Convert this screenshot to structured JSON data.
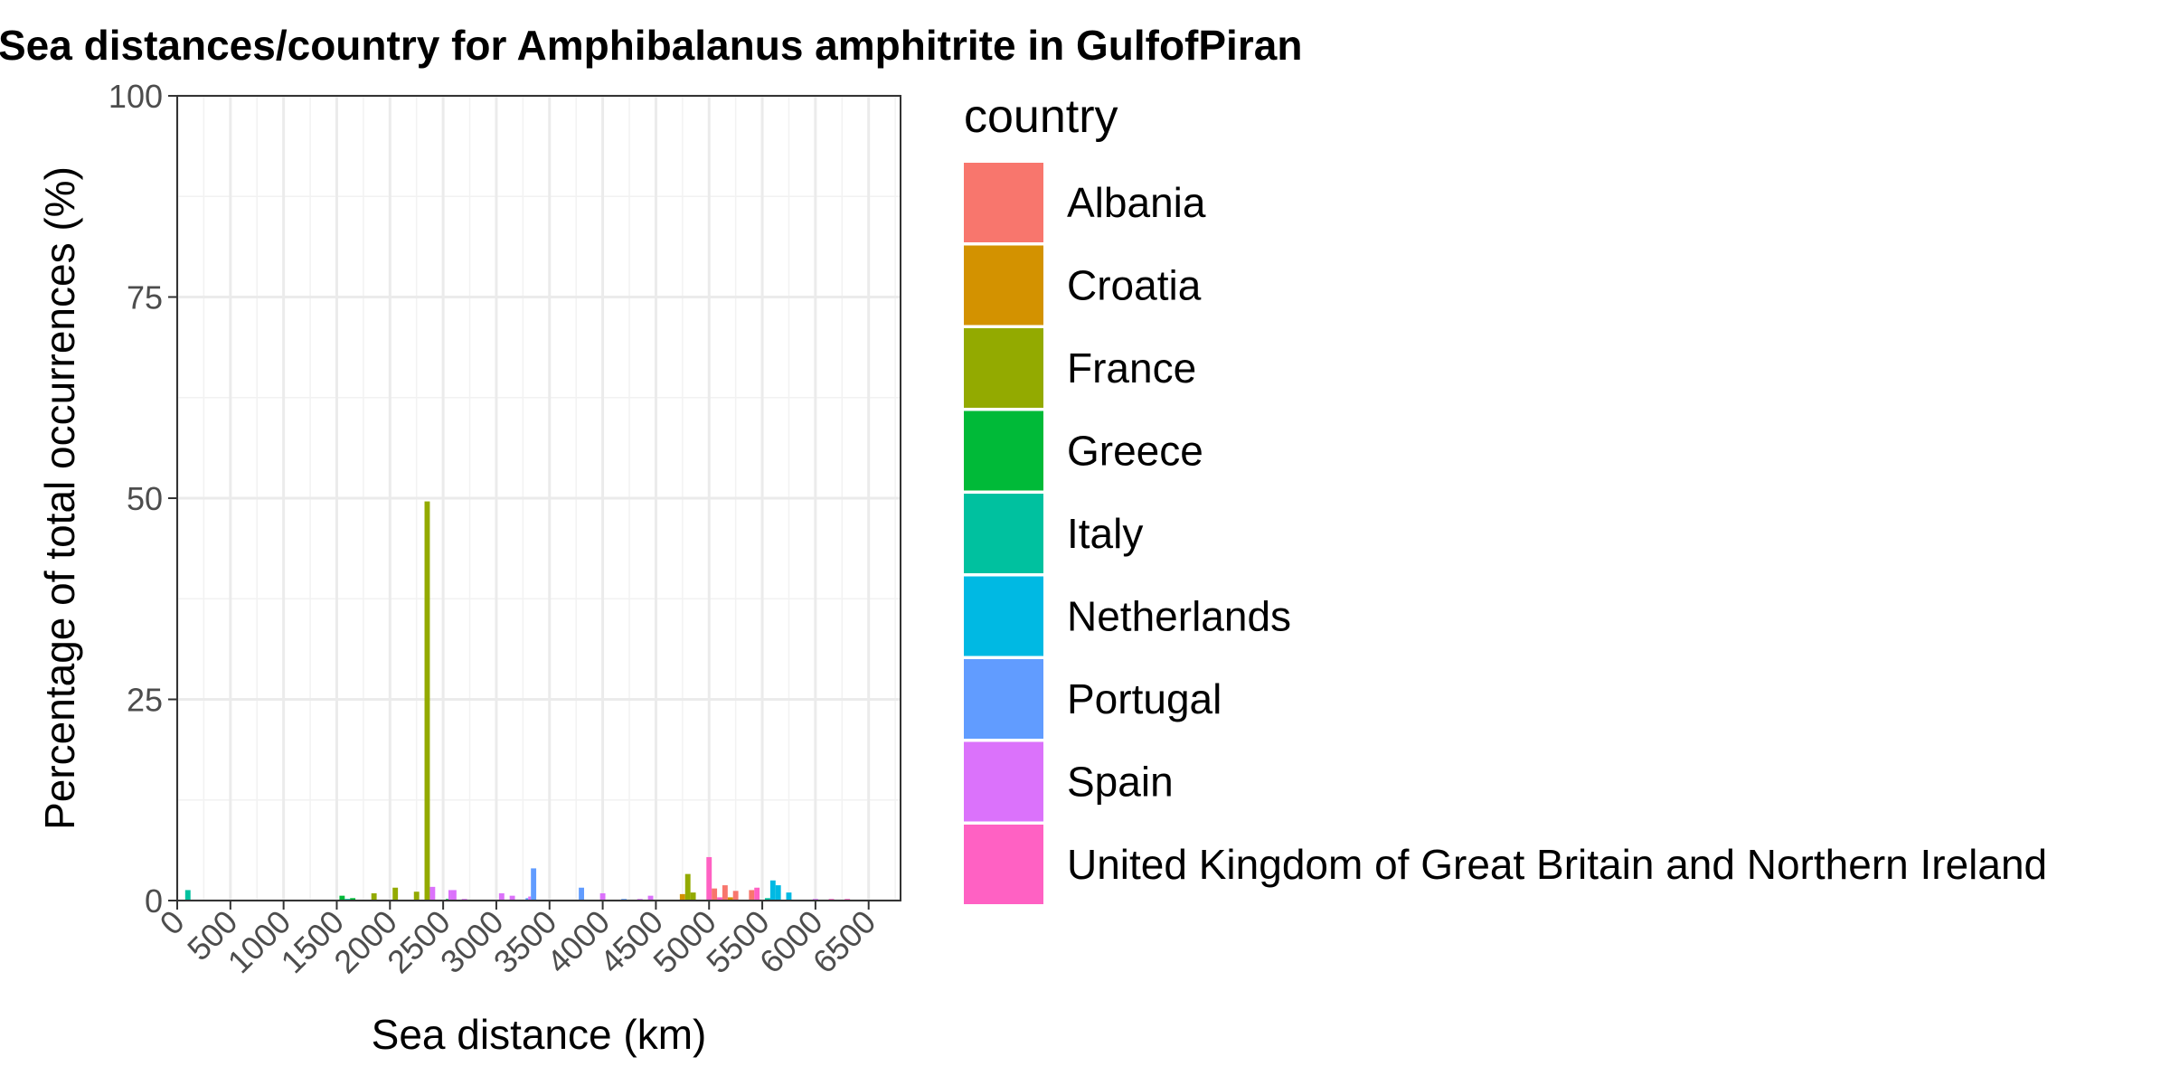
{
  "chart_data": {
    "type": "bar",
    "title": "Sea distances/country for Amphibalanus amphitrite in GulfofPiran",
    "xlabel": "Sea distance (km)",
    "ylabel": "Percentage of total occurrences (%)",
    "xlim": [
      0,
      6800
    ],
    "ylim": [
      0,
      100
    ],
    "x_ticks": [
      0,
      500,
      1000,
      1500,
      2000,
      2500,
      3000,
      3500,
      4000,
      4500,
      5000,
      5500,
      6000,
      6500
    ],
    "y_ticks": [
      0,
      25,
      50,
      75,
      100
    ],
    "bar_width_km": 50,
    "grid": true,
    "legend": {
      "title": "country",
      "position": "right"
    },
    "series": [
      {
        "name": "Albania",
        "color": "#F8766D",
        "points": [
          [
            5050,
            1.5
          ],
          [
            5150,
            1.9
          ],
          [
            5250,
            1.2
          ],
          [
            5400,
            1.3
          ]
        ]
      },
      {
        "name": "Croatia",
        "color": "#D39200",
        "points": [
          [
            4750,
            0.8
          ],
          [
            5200,
            0.4
          ]
        ]
      },
      {
        "name": "France",
        "color": "#93AA00",
        "points": [
          [
            1850,
            0.9
          ],
          [
            2050,
            1.6
          ],
          [
            2250,
            1.1
          ],
          [
            2350,
            49.6
          ],
          [
            4800,
            3.3
          ],
          [
            4850,
            1.0
          ]
        ]
      },
      {
        "name": "Greece",
        "color": "#00BA38",
        "points": [
          [
            1550,
            0.6
          ],
          [
            1650,
            0.3
          ],
          [
            2550,
            0.2
          ]
        ]
      },
      {
        "name": "Italy",
        "color": "#00C19F",
        "points": [
          [
            100,
            1.3
          ],
          [
            1600,
            0.2
          ],
          [
            5550,
            0.3
          ]
        ]
      },
      {
        "name": "Netherlands",
        "color": "#00B9E3",
        "points": [
          [
            5600,
            2.5
          ],
          [
            5650,
            1.9
          ],
          [
            5750,
            1.0
          ]
        ]
      },
      {
        "name": "Portugal",
        "color": "#619CFF",
        "points": [
          [
            3300,
            0.3
          ],
          [
            3350,
            4.0
          ],
          [
            3800,
            1.6
          ],
          [
            4200,
            0.2
          ]
        ]
      },
      {
        "name": "Spain",
        "color": "#DB72FB",
        "points": [
          [
            2400,
            1.7
          ],
          [
            2550,
            1.3
          ],
          [
            2600,
            1.3
          ],
          [
            2700,
            0.2
          ],
          [
            3050,
            0.9
          ],
          [
            3150,
            0.6
          ],
          [
            3300,
            0.5
          ],
          [
            4000,
            0.9
          ],
          [
            4350,
            0.2
          ],
          [
            4450,
            0.6
          ],
          [
            6000,
            0.2
          ]
        ]
      },
      {
        "name": "United Kingdom of Great Britain and Northern Ireland",
        "color": "#FF61C3",
        "points": [
          [
            5000,
            5.4
          ],
          [
            5100,
            0.4
          ],
          [
            5450,
            1.6
          ],
          [
            6150,
            0.2
          ],
          [
            6300,
            0.2
          ]
        ]
      }
    ]
  }
}
